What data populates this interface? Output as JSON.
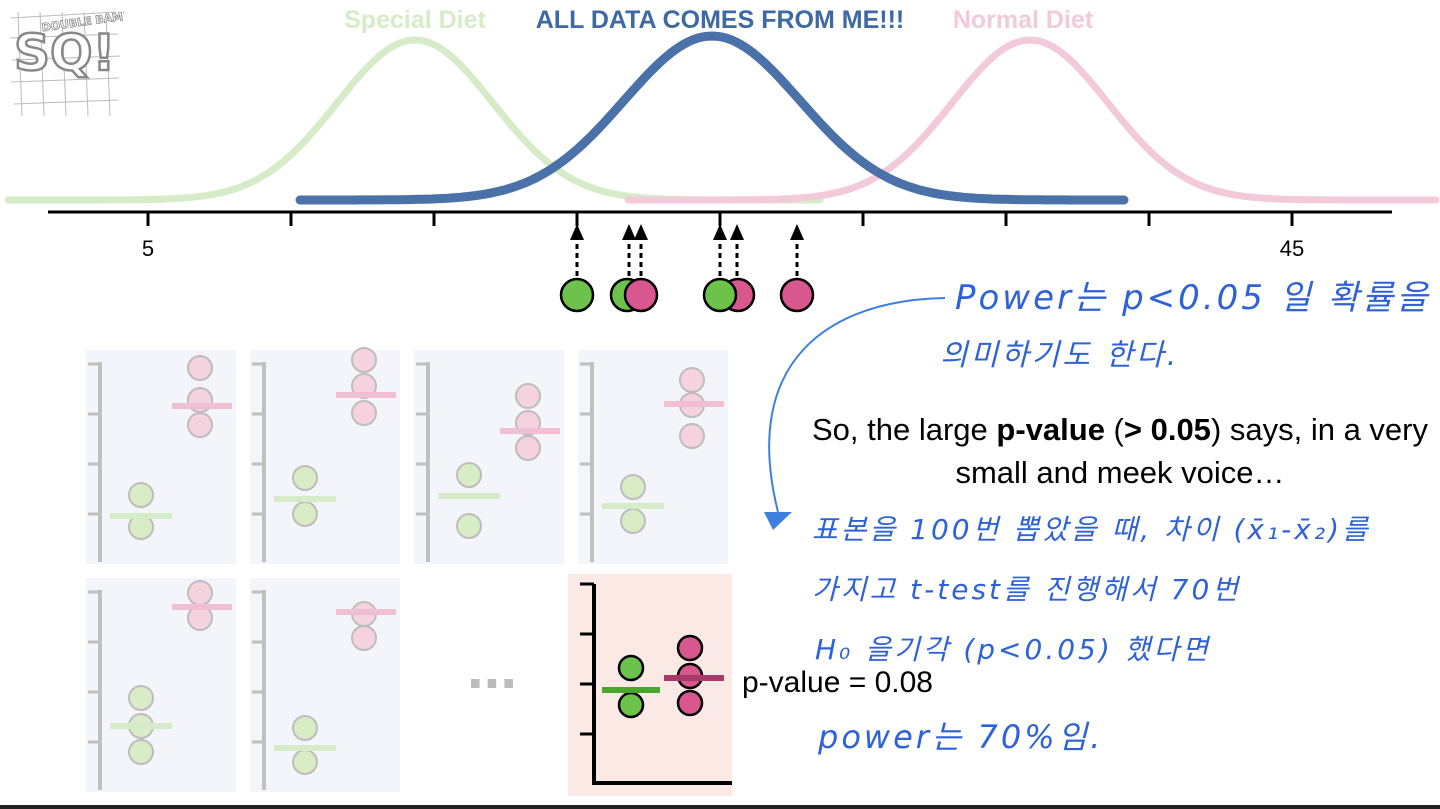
{
  "titles": {
    "special": "Special Diet",
    "all": "ALL DATA COMES FROM ME!!!",
    "normal": "Normal Diet"
  },
  "logo": {
    "letters": "SQ!",
    "tag": "DOUBLE BAM!!!"
  },
  "axis": {
    "left_label": "5",
    "right_label": "45"
  },
  "colors": {
    "blue": "#4a72a8",
    "green_light": "#d6ecc8",
    "pink_light": "#f2cad9",
    "green": "#6cc24a",
    "pink": "#d8578f",
    "panel_bg": "#f4f5fa",
    "panel_highlight": "#fbe9e6",
    "handwriting": "#2f62d6"
  },
  "ellipsis": "...",
  "main_text": {
    "part1": "So, the large ",
    "bold1": "p-value",
    "part2": " (",
    "bold2": "> 0.05",
    "part3": ") says, in a very small and meek voice…"
  },
  "pvalue_label": "p-value = 0.08",
  "handwriting": {
    "line1": "Power는 p<0.05 일 확률을",
    "line2": "의미하기도 한다.",
    "line3": "표본을 100번 뽑았을 때, 차이 (x̄₁-x̄₂)를",
    "line4": "가지고 t-test를 진행해서 70번",
    "line5": "H₀ 을기각   (p<0.05) 했다면",
    "line6": "power는 70%임."
  },
  "sample_points": [
    "green",
    "green",
    "pink",
    "pink",
    "green",
    "pink"
  ]
}
